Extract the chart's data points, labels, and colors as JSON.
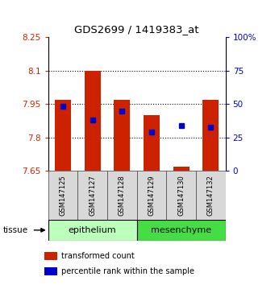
{
  "title": "GDS2699 / 1419383_at",
  "samples": [
    "GSM147125",
    "GSM147127",
    "GSM147128",
    "GSM147129",
    "GSM147130",
    "GSM147132"
  ],
  "bar_tops": [
    7.97,
    8.1,
    7.97,
    7.9,
    7.67,
    7.97
  ],
  "bar_bottom": 7.65,
  "blue_dot_values": [
    7.94,
    7.88,
    7.92,
    7.825,
    7.855,
    7.845
  ],
  "blue_dot_on_bar": [
    true,
    true,
    true,
    true,
    false,
    true
  ],
  "ylim_left": [
    7.65,
    8.25
  ],
  "ylim_right": [
    0,
    100
  ],
  "yticks_left": [
    7.65,
    7.8,
    7.95,
    8.1,
    8.25
  ],
  "ytick_labels_left": [
    "7.65",
    "7.8",
    "7.95",
    "8.1",
    "8.25"
  ],
  "yticks_right": [
    0,
    25,
    50,
    75,
    100
  ],
  "ytick_labels_right": [
    "0",
    "25",
    "50",
    "75",
    "100%"
  ],
  "left_tick_color": "#cc2200",
  "right_tick_color": "#0000cc",
  "bar_color": "#cc2200",
  "blue_color": "#0000cc",
  "grid_ticks": [
    7.8,
    7.95,
    8.1
  ],
  "tissue_label": "tissue",
  "epi_label": "epithelium",
  "meso_label": "mesenchyme",
  "epi_color": "#bbffbb",
  "meso_color": "#44dd44",
  "legend_red_label": "transformed count",
  "legend_blue_label": "percentile rank within the sample"
}
